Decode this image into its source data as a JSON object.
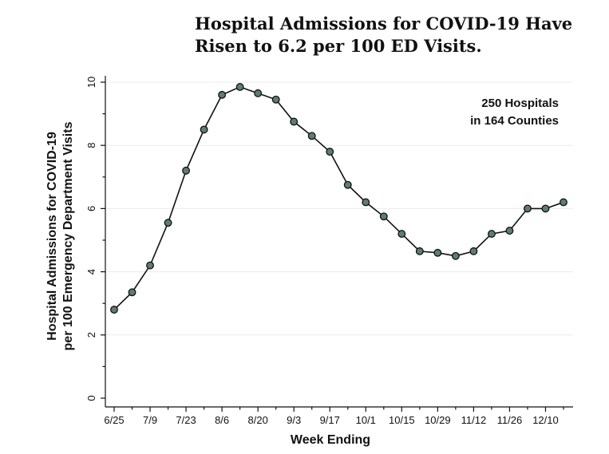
{
  "chart_data": {
    "type": "line",
    "title": [
      "Hospital Admissions for COVID-19 Have",
      "Risen to 6.2 per 100 ED Visits."
    ],
    "xlabel": "Week Ending",
    "ylabel": [
      "Hospital Admissions for COVID-19",
      "per 100 Emergency Department Visits"
    ],
    "ylim": [
      0,
      10
    ],
    "yticks_major": [
      0,
      2,
      4,
      6,
      8,
      10
    ],
    "yticks_minor": [
      1,
      3,
      5,
      7,
      9
    ],
    "grid": true,
    "x_tick_labels": [
      "6/25",
      "7/9",
      "7/23",
      "8/6",
      "8/20",
      "9/3",
      "9/17",
      "10/1",
      "10/15",
      "10/29",
      "11/12",
      "11/26",
      "12/10"
    ],
    "x_tick_label_every": 2,
    "annotation": [
      "250 Hospitals",
      "in 164 Counties"
    ],
    "annotation_position": "top-right",
    "series": [
      {
        "name": "Hospital Admissions for COVID-19 per 100 ED Visits",
        "values": [
          2.8,
          3.35,
          4.2,
          5.55,
          7.2,
          8.5,
          9.6,
          9.85,
          9.65,
          9.45,
          8.75,
          8.3,
          7.8,
          6.75,
          6.2,
          5.75,
          5.2,
          4.65,
          4.6,
          4.5,
          4.65,
          5.2,
          5.3,
          6.0,
          6.0,
          6.2
        ]
      }
    ]
  }
}
